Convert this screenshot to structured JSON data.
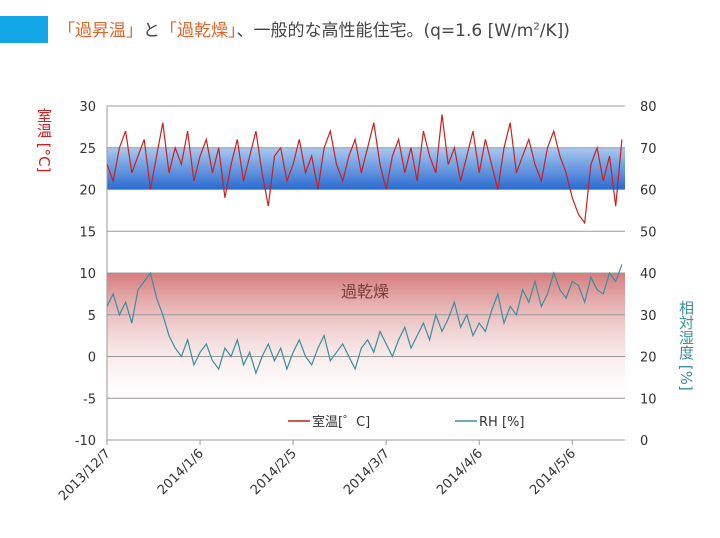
{
  "header": {
    "t1": "「過昇温」",
    "t2": "と",
    "t3": "「過乾燥」",
    "t4": "、一般的な高性能住宅。(q=1.6 [W/m",
    "t5": "2",
    "t6": "/K])"
  },
  "chart_data": {
    "type": "line",
    "title": "「過昇温」と「過乾燥」、一般的な高性能住宅。(q=1.6 [W/m2/K])",
    "ylabel": "室温 [°C]",
    "y2label": "相対湿度 [%]",
    "ylim": [
      -10,
      30
    ],
    "y2lim": [
      0,
      80
    ],
    "yticks": [
      "30",
      "25",
      "20",
      "15",
      "10",
      "5",
      "0",
      "-5",
      "-10"
    ],
    "y2ticks": [
      "80",
      "70",
      "60",
      "50",
      "40",
      "30",
      "20",
      "10",
      "0"
    ],
    "xticks": [
      "2013/12/7",
      "2014/1/6",
      "2014/2/5",
      "2014/3/7",
      "2014/4/6",
      "2014/5/6"
    ],
    "x_days_range": [
      0,
      167
    ],
    "sample_step_days": 2,
    "bands": [
      {
        "axis": "y",
        "from": 20,
        "to": 25,
        "color": "#3a7ad8"
      },
      {
        "axis": "y",
        "from": -5,
        "to": 10,
        "color": "#d97a7a",
        "label": "過乾燥"
      }
    ],
    "grid": true,
    "legend": "bottom-inside",
    "series": [
      {
        "name": "室温[゜C]",
        "axis": "left",
        "color": "#cc1f1f",
        "values": [
          23,
          21,
          25,
          27,
          22,
          24,
          26,
          20,
          24,
          28,
          22,
          25,
          23,
          27,
          21,
          24,
          26,
          22,
          25,
          19,
          23,
          26,
          21,
          24,
          27,
          22,
          18,
          24,
          25,
          21,
          23,
          26,
          22,
          24,
          20,
          25,
          27,
          23,
          21,
          24,
          26,
          22,
          25,
          28,
          23,
          20,
          24,
          26,
          22,
          25,
          21,
          27,
          24,
          22,
          29,
          23,
          25,
          21,
          24,
          27,
          22,
          26,
          23,
          20,
          25,
          28,
          22,
          24,
          26,
          23,
          21,
          25,
          27,
          24,
          22,
          19,
          17,
          16,
          23,
          25,
          21,
          24,
          18,
          26
        ]
      },
      {
        "name": "RH [%]",
        "axis": "right",
        "color": "#3a8ea0",
        "values": [
          32,
          35,
          30,
          33,
          28,
          36,
          38,
          40,
          34,
          30,
          25,
          22,
          20,
          24,
          18,
          21,
          23,
          19,
          17,
          22,
          20,
          24,
          18,
          21,
          16,
          20,
          23,
          19,
          22,
          17,
          21,
          24,
          20,
          18,
          22,
          25,
          19,
          21,
          23,
          20,
          17,
          22,
          24,
          21,
          26,
          23,
          20,
          24,
          27,
          22,
          25,
          28,
          24,
          30,
          26,
          29,
          33,
          27,
          30,
          25,
          28,
          26,
          31,
          35,
          28,
          32,
          30,
          36,
          33,
          38,
          32,
          35,
          40,
          36,
          34,
          38,
          37,
          33,
          39,
          36,
          35,
          40,
          38,
          42
        ]
      }
    ]
  }
}
